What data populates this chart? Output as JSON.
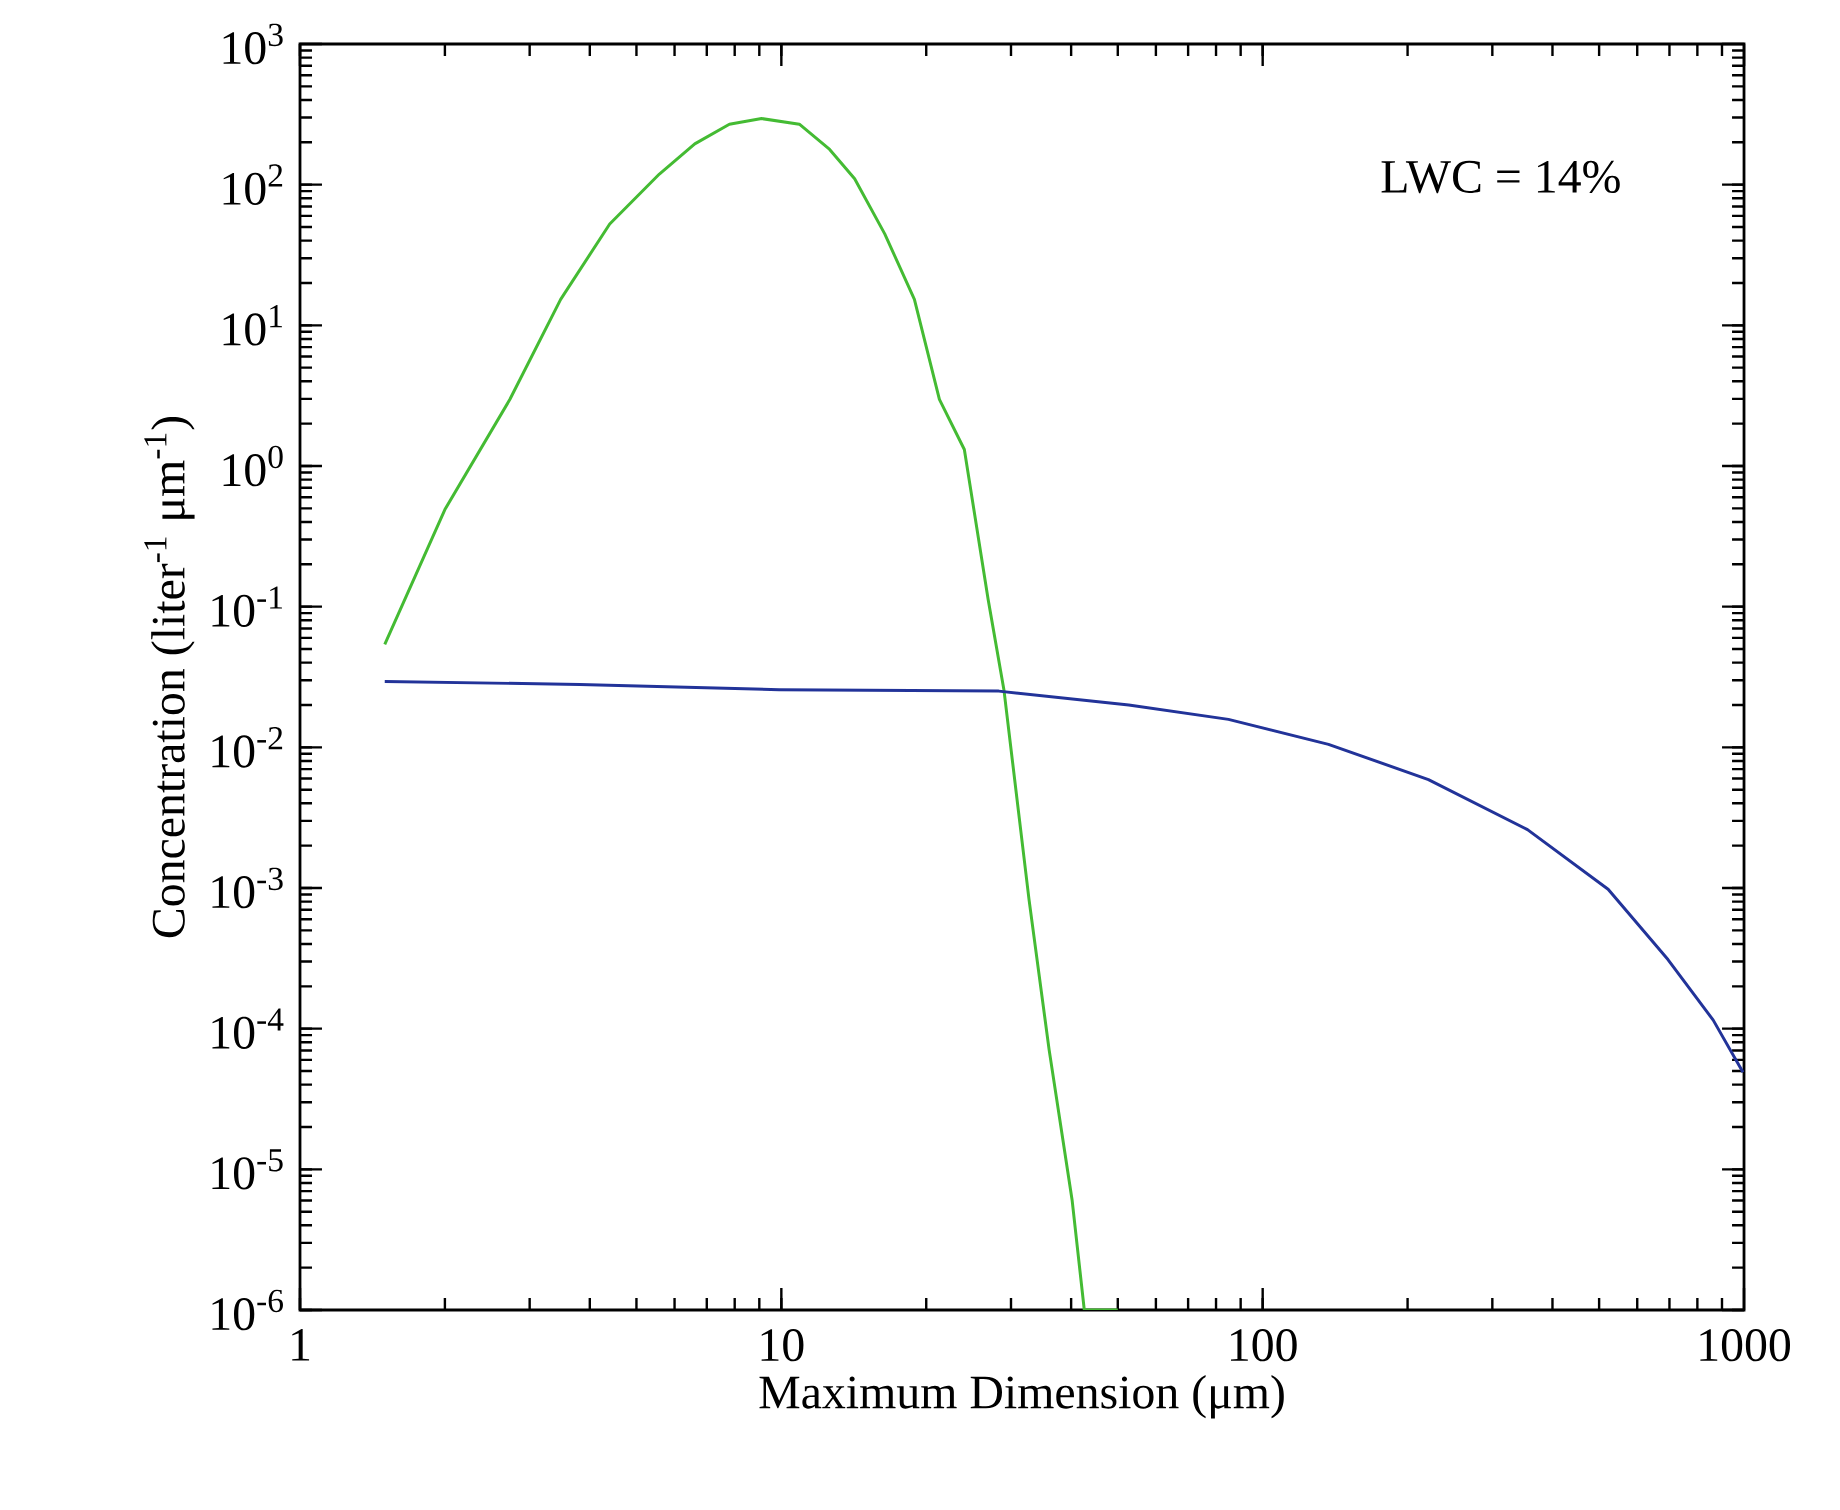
{
  "chart_data": {
    "type": "line",
    "xlabel": "Maximum Dimension (μm)",
    "ylabel": "Concentration (liter$^{-1}$ μm$^{-1}$)",
    "annotations": [
      "LWC = 14%"
    ],
    "log": "xy",
    "xlim": [
      1,
      1000
    ],
    "ylim": [
      1e-06,
      1000
    ],
    "xticks": [
      1,
      10,
      100,
      1000
    ],
    "yticks": [
      {
        "value": 1e-06,
        "label": "10$^{-6}$"
      },
      {
        "value": 1e-05,
        "label": "10$^{-5}$"
      },
      {
        "value": 0.0001,
        "label": "10$^{-4}$"
      },
      {
        "value": 0.001,
        "label": "10$^{-3}$"
      },
      {
        "value": 0.01,
        "label": "10$^{-2}$"
      },
      {
        "value": 0.1,
        "label": "10$^{-1}$"
      },
      {
        "value": 1,
        "label": "10$^{0}$"
      },
      {
        "value": 10,
        "label": "10$^{1}$"
      },
      {
        "value": 100,
        "label": "10$^{2}$"
      },
      {
        "value": 1000,
        "label": "10$^{3}$"
      }
    ],
    "series": [
      {
        "color": "#44bb33",
        "x": [
          1.5,
          2.0,
          2.73,
          3.48,
          4.4,
          5.58,
          6.61,
          7.8,
          9.1,
          10.9,
          12.6,
          14.2,
          16.4,
          18.9,
          21.3,
          24.0,
          26.9,
          29.0,
          32.7,
          36.0,
          40.2,
          42.6,
          50
        ],
        "values": [
          0.054,
          0.49,
          2.98,
          15.3,
          52.5,
          119,
          195,
          269,
          295,
          269,
          178,
          110,
          44.7,
          15.3,
          2.98,
          1.31,
          0.112,
          0.0257,
          0.00083,
          7.1e-05,
          6e-06,
          1e-06,
          1e-06
        ]
      },
      {
        "color": "#223399",
        "x": [
          1.5,
          3.81,
          9.9,
          28.3,
          52.7,
          84.9,
          137,
          221,
          355,
          522,
          695,
          863,
          995
        ],
        "values": [
          0.0294,
          0.028,
          0.0257,
          0.0251,
          0.02,
          0.0158,
          0.0105,
          0.0059,
          0.0026,
          0.00098,
          0.00031,
          0.000115,
          4.9e-05
        ]
      }
    ]
  }
}
